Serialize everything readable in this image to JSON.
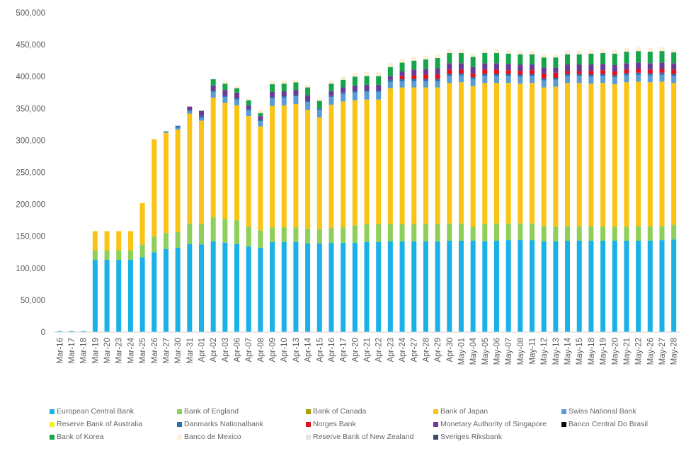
{
  "chart_data": {
    "type": "bar",
    "stacked": true,
    "ylim": [
      0,
      500000
    ],
    "yticks": [
      "0",
      "50,000",
      "100,000",
      "150,000",
      "200,000",
      "250,000",
      "300,000",
      "350,000",
      "400,000",
      "450,000",
      "500,000"
    ],
    "grid": false,
    "legend_position": "bottom",
    "categories": [
      "Mar-16",
      "Mar-17",
      "Mar-18",
      "Mar-19",
      "Mar-20",
      "Mar-23",
      "Mar-24",
      "Mar-25",
      "Mar-26",
      "Mar-27",
      "Mar-30",
      "Mar-31",
      "Apr-01",
      "Apr-02",
      "Apr-03",
      "Apr-06",
      "Apr-07",
      "Apr-08",
      "Apr-09",
      "Apr-10",
      "Apr-13",
      "Apr-14",
      "Apr-15",
      "Apr-16",
      "Apr-17",
      "Apr-20",
      "Apr-21",
      "Apr-22",
      "Apr-23",
      "Apr-24",
      "Apr-27",
      "Apr-28",
      "Apr-29",
      "Apr-30",
      "May-01",
      "May-04",
      "May-05",
      "May-06",
      "May-07",
      "May-08",
      "May-11",
      "May-12",
      "May-13",
      "May-14",
      "May-15",
      "May-18",
      "May-19",
      "May-20",
      "May-21",
      "May-22",
      "May-26",
      "May-27",
      "May-28"
    ],
    "series": [
      {
        "name": "European Central Bank",
        "color": "#1ab0e8",
        "values": [
          1500,
          1500,
          1500,
          113000,
          113000,
          113000,
          113000,
          117000,
          125000,
          130000,
          132000,
          138000,
          137000,
          142000,
          140000,
          138000,
          134000,
          132000,
          141000,
          141000,
          141000,
          139000,
          139000,
          140000,
          140000,
          140000,
          141000,
          141000,
          142000,
          142000,
          142000,
          142000,
          142000,
          143000,
          143000,
          143000,
          142000,
          143000,
          144000,
          144000,
          144000,
          142000,
          142000,
          143000,
          143000,
          143000,
          143000,
          143000,
          143000,
          143000,
          143000,
          144000,
          145000
        ]
      },
      {
        "name": "Bank of England",
        "color": "#8dcf5a",
        "values": [
          0,
          0,
          0,
          15000,
          15000,
          15000,
          15000,
          20000,
          25000,
          25000,
          25000,
          32000,
          32000,
          38000,
          37000,
          37000,
          31000,
          27000,
          23000,
          23000,
          23000,
          23000,
          22000,
          23000,
          24000,
          27000,
          28000,
          28000,
          27000,
          27000,
          27000,
          27000,
          27000,
          27000,
          27000,
          22000,
          27000,
          27000,
          26000,
          26000,
          26000,
          24000,
          23000,
          23000,
          23000,
          23000,
          23000,
          22000,
          22000,
          23000,
          23000,
          22000,
          23000
        ]
      },
      {
        "name": "Bank of Canada",
        "color": "#a8a000",
        "values": [
          0,
          0,
          0,
          0,
          0,
          0,
          0,
          0,
          0,
          0,
          0,
          0,
          0,
          0,
          0,
          0,
          0,
          0,
          0,
          0,
          0,
          0,
          0,
          0,
          0,
          0,
          0,
          0,
          0,
          0,
          0,
          0,
          0,
          0,
          0,
          0,
          0,
          0,
          0,
          0,
          0,
          0,
          0,
          0,
          0,
          0,
          0,
          0,
          0,
          0,
          0,
          0,
          0
        ]
      },
      {
        "name": "Bank of Japan",
        "color": "#fbc415",
        "values": [
          0,
          0,
          0,
          30000,
          30000,
          30000,
          30000,
          65000,
          152000,
          157000,
          160000,
          172000,
          162000,
          187000,
          182000,
          180000,
          173000,
          163000,
          190000,
          191000,
          193000,
          186000,
          175000,
          193000,
          197000,
          196000,
          195000,
          195000,
          213000,
          214000,
          214000,
          214000,
          214000,
          220000,
          221000,
          220000,
          221000,
          220000,
          220000,
          219000,
          220000,
          217000,
          219000,
          224000,
          224000,
          223000,
          224000,
          223000,
          226000,
          226000,
          225000,
          226000,
          222000
        ]
      },
      {
        "name": "Swiss National Bank",
        "color": "#5b9bd5",
        "values": [
          0,
          0,
          0,
          0,
          0,
          0,
          0,
          0,
          0,
          2500,
          3000,
          4000,
          4500,
          9000,
          9000,
          9000,
          9000,
          8000,
          12000,
          12000,
          12000,
          12000,
          12000,
          12000,
          12000,
          12000,
          12000,
          12000,
          10000,
          10000,
          10000,
          10000,
          10000,
          11000,
          11000,
          11000,
          11000,
          11000,
          11000,
          11000,
          11000,
          11000,
          11000,
          11000,
          11000,
          11000,
          11000,
          11000,
          11000,
          11000,
          11000,
          11000,
          11000
        ]
      },
      {
        "name": "Reserve Bank of Australia",
        "color": "#f5f01e",
        "values": [
          0,
          0,
          0,
          0,
          0,
          0,
          0,
          0,
          0,
          0,
          0,
          0,
          0,
          0,
          0,
          0,
          0,
          0,
          0,
          0,
          0,
          0,
          0,
          0,
          0,
          0,
          0,
          0,
          0,
          0,
          0,
          0,
          0,
          0,
          0,
          0,
          0,
          0,
          0,
          0,
          0,
          0,
          0,
          0,
          0,
          0,
          0,
          0,
          0,
          0,
          0,
          0,
          0
        ]
      },
      {
        "name": "Danmarks Nationalbank",
        "color": "#2572b5",
        "values": [
          0,
          0,
          0,
          0,
          0,
          0,
          0,
          0,
          0,
          0,
          3000,
          2000,
          3000,
          2000,
          2000,
          2000,
          2000,
          2000,
          2000,
          2000,
          2000,
          2000,
          2000,
          2000,
          2000,
          2000,
          2000,
          2000,
          3000,
          3000,
          3000,
          3000,
          3000,
          3000,
          3000,
          3000,
          3000,
          3000,
          3000,
          3000,
          3000,
          3000,
          3000,
          3000,
          3000,
          3000,
          3000,
          3000,
          3000,
          3000,
          3000,
          3000,
          3000
        ]
      },
      {
        "name": "Norges Bank",
        "color": "#e0101f",
        "values": [
          0,
          0,
          0,
          0,
          0,
          0,
          0,
          0,
          0,
          0,
          0,
          0,
          0,
          0,
          0,
          0,
          0,
          0,
          0,
          0,
          0,
          0,
          0,
          0,
          0,
          0,
          0,
          0,
          0,
          5000,
          6000,
          7000,
          7000,
          7000,
          6000,
          6000,
          7000,
          7000,
          6000,
          6000,
          6000,
          8000,
          8000,
          5000,
          5000,
          6000,
          6000,
          6000,
          6000,
          6000,
          6000,
          6000,
          7000
        ]
      },
      {
        "name": "Monetary Authority of Singapore",
        "color": "#6a3a96",
        "values": [
          0,
          0,
          0,
          0,
          0,
          0,
          0,
          0,
          0,
          0,
          0,
          5000,
          8000,
          8000,
          9000,
          9000,
          6000,
          6000,
          8000,
          8000,
          8000,
          9000,
          0,
          7000,
          8000,
          9000,
          9000,
          9000,
          6000,
          7000,
          9000,
          9000,
          10000,
          10000,
          10000,
          10000,
          10000,
          10000,
          10000,
          10000,
          9000,
          9000,
          8000,
          10000,
          10000,
          10000,
          10000,
          10000,
          10000,
          10000,
          10000,
          10000,
          10000
        ]
      },
      {
        "name": "Banco Central Do Brasil",
        "color": "#0a0a0a",
        "values": [
          0,
          0,
          0,
          0,
          0,
          0,
          0,
          0,
          0,
          0,
          0,
          0,
          0,
          0,
          0,
          0,
          0,
          0,
          0,
          0,
          0,
          0,
          0,
          0,
          0,
          0,
          0,
          0,
          0,
          0,
          0,
          0,
          0,
          0,
          0,
          0,
          0,
          0,
          0,
          0,
          0,
          0,
          0,
          0,
          0,
          0,
          0,
          0,
          0,
          0,
          0,
          0,
          0
        ]
      },
      {
        "name": "Bank of Korea",
        "color": "#17a54a",
        "values": [
          0,
          0,
          0,
          0,
          0,
          0,
          0,
          0,
          0,
          0,
          0,
          0,
          0,
          10000,
          10000,
          7000,
          8000,
          5000,
          12000,
          12000,
          12000,
          12000,
          12000,
          12000,
          12000,
          14000,
          14000,
          14000,
          14000,
          14000,
          14000,
          15000,
          16000,
          16000,
          16000,
          16000,
          16000,
          16000,
          16000,
          16000,
          16000,
          16000,
          16000,
          16000,
          16000,
          17000,
          17000,
          18000,
          18000,
          18000,
          18000,
          18000,
          17000
        ]
      },
      {
        "name": "Banco de Mexico",
        "color": "#fcefd6",
        "values": [
          0,
          0,
          0,
          0,
          0,
          0,
          0,
          0,
          0,
          0,
          0,
          0,
          0,
          0,
          5000,
          3000,
          3000,
          5000,
          5000,
          5000,
          4000,
          4000,
          4000,
          5000,
          5000,
          6000,
          6000,
          6000,
          6000,
          6000,
          6000,
          6000,
          6000,
          6000,
          5000,
          5000,
          5000,
          6000,
          5000,
          5000,
          5000,
          5000,
          5000,
          6000,
          6000,
          6000,
          6000,
          6000,
          6000,
          6000,
          6000,
          6000,
          5000
        ]
      },
      {
        "name": "Reserve Bank of New Zealand",
        "color": "#e3e3e3",
        "values": [
          0,
          0,
          0,
          0,
          0,
          0,
          0,
          0,
          0,
          0,
          0,
          0,
          0,
          0,
          0,
          0,
          0,
          0,
          0,
          0,
          0,
          0,
          0,
          0,
          0,
          0,
          0,
          0,
          0,
          0,
          0,
          0,
          0,
          0,
          0,
          0,
          0,
          0,
          0,
          0,
          0,
          0,
          0,
          0,
          0,
          0,
          0,
          0,
          0,
          0,
          0,
          0,
          0
        ]
      },
      {
        "name": "Sveriges Riksbank",
        "color": "#3a4a6b",
        "values": [
          0,
          0,
          0,
          0,
          0,
          0,
          0,
          0,
          0,
          0,
          0,
          0,
          0,
          0,
          0,
          0,
          0,
          0,
          0,
          0,
          0,
          0,
          0,
          0,
          0,
          0,
          0,
          0,
          0,
          0,
          0,
          0,
          0,
          0,
          0,
          0,
          0,
          0,
          0,
          0,
          0,
          0,
          0,
          0,
          0,
          0,
          0,
          0,
          0,
          0,
          0,
          0,
          0
        ]
      }
    ]
  }
}
